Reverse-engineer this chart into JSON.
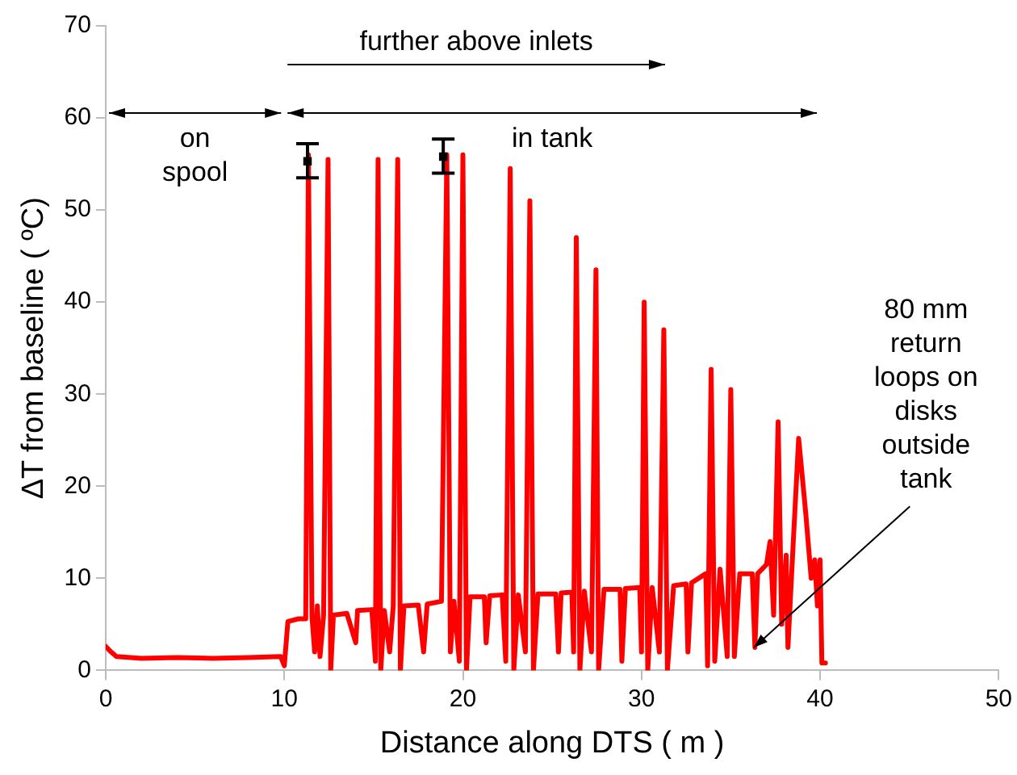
{
  "chart_data": {
    "type": "line",
    "xlabel": "Distance along DTS ( m )",
    "ylabel": "ΔT from baseline ( ºC)",
    "xlim": [
      0,
      50
    ],
    "xticks": [
      0,
      10,
      20,
      30,
      40,
      50
    ],
    "ylim": [
      0,
      70
    ],
    "yticks": [
      0,
      10,
      20,
      30,
      40,
      50,
      60,
      70
    ],
    "grid": false,
    "legend": false,
    "marker": "none",
    "line_style": "solid",
    "series": [
      {
        "color": "#ff0000",
        "x": [
          0,
          0.3,
          0.6,
          2,
          4,
          6,
          8,
          9.8,
          10.0,
          10.2,
          10.8,
          11.2,
          11.35,
          11.55,
          11.7,
          11.85,
          12.0,
          12.2,
          12.45,
          12.6,
          12.75,
          13.5,
          14.0,
          14.1,
          14.9,
          15.1,
          15.25,
          15.4,
          15.6,
          15.9,
          16.1,
          16.35,
          16.5,
          16.7,
          17.5,
          17.8,
          18.0,
          18.8,
          19.1,
          19.3,
          19.5,
          19.8,
          20.0,
          20.2,
          20.4,
          21.2,
          21.3,
          21.5,
          22.2,
          22.4,
          22.65,
          22.85,
          23.1,
          23.5,
          23.75,
          23.95,
          24.2,
          25.2,
          25.35,
          25.5,
          26.1,
          26.2,
          26.35,
          26.55,
          26.8,
          27.2,
          27.45,
          27.6,
          27.9,
          28.8,
          28.9,
          29.1,
          29.9,
          30.0,
          30.15,
          30.35,
          30.6,
          31.0,
          31.25,
          31.45,
          31.8,
          32.5,
          32.6,
          32.8,
          33.6,
          33.7,
          33.9,
          34.1,
          34.4,
          34.8,
          35.0,
          35.2,
          35.5,
          36.2,
          36.35,
          36.5,
          37.0,
          37.2,
          37.4,
          37.65,
          37.85,
          38.1,
          38.2,
          38.5,
          38.8,
          39.2,
          39.5,
          39.7,
          39.85,
          40.0,
          40.1,
          40.3
        ],
        "values": [
          2.6,
          2.0,
          1.5,
          1.3,
          1.4,
          1.3,
          1.4,
          1.5,
          0.5,
          5.3,
          5.6,
          5.6,
          56,
          5.8,
          2,
          7,
          1.5,
          6,
          55.5,
          0,
          6.0,
          6.2,
          3,
          6.5,
          6.6,
          1,
          55.5,
          0,
          6.5,
          2,
          7,
          55.5,
          0,
          7.0,
          7.1,
          2,
          7.2,
          7.5,
          56,
          2,
          7.5,
          1,
          56,
          0,
          8.0,
          8.0,
          3,
          8.1,
          8.2,
          1,
          54.5,
          0,
          8.2,
          2,
          51,
          0,
          8.3,
          8.3,
          2,
          8.4,
          8.5,
          2,
          47,
          0,
          8.6,
          2,
          43.5,
          0,
          8.8,
          8.8,
          1,
          8.9,
          9,
          2,
          40,
          0,
          9.0,
          2,
          37,
          0,
          9.2,
          9.4,
          2,
          9.5,
          10.5,
          0.5,
          32.7,
          1,
          11,
          1.5,
          30.5,
          1.5,
          10.5,
          10.5,
          2.5,
          10.5,
          11.5,
          14,
          6,
          27,
          5,
          12.5,
          2.5,
          14,
          25.2,
          17,
          10,
          12,
          7,
          12,
          0.8,
          0.8
        ]
      },
      {
        "type": "scatter",
        "color": "#000000",
        "marker": "square",
        "x": [
          11.3,
          18.9
        ],
        "values": [
          55.3,
          55.8
        ],
        "errors": [
          [
            53.5,
            57.2
          ],
          [
            54,
            57.7
          ]
        ]
      }
    ],
    "annotations": [
      "on spool",
      "in tank",
      "further above inlets",
      {
        "text": "80 mm return loops on disks outside tank",
        "x": 36.3,
        "y": 2.5
      }
    ]
  }
}
